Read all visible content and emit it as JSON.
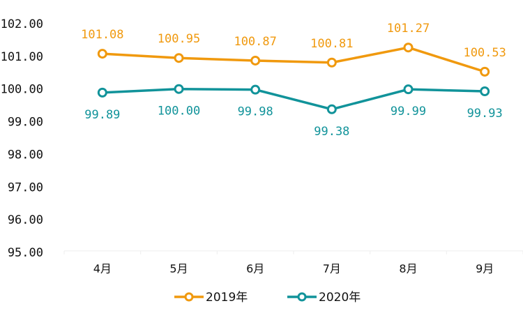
{
  "chart_data": {
    "type": "line",
    "title": "",
    "xlabel": "",
    "ylabel": "",
    "categories": [
      "4月",
      "5月",
      "6月",
      "7月",
      "8月",
      "9月"
    ],
    "ylim": [
      95,
      102
    ],
    "yticks": [
      "95.00",
      "96.00",
      "97.00",
      "98.00",
      "99.00",
      "100.00",
      "101.00",
      "102.00"
    ],
    "grid": false,
    "legend_position": "bottom",
    "series": [
      {
        "name": "2019年",
        "color": "#F0990E",
        "values": [
          101.08,
          100.95,
          100.87,
          100.81,
          101.27,
          100.53
        ],
        "labels": [
          "101.08",
          "100.95",
          "100.87",
          "100.81",
          "101.27",
          "100.53"
        ],
        "label_position": "above"
      },
      {
        "name": "2020年",
        "color": "#11939A",
        "values": [
          99.89,
          100.0,
          99.98,
          99.38,
          99.99,
          99.93
        ],
        "labels": [
          "99.89",
          "100.00",
          "99.98",
          "99.38",
          "99.99",
          "99.93"
        ],
        "label_position": "below"
      }
    ]
  }
}
